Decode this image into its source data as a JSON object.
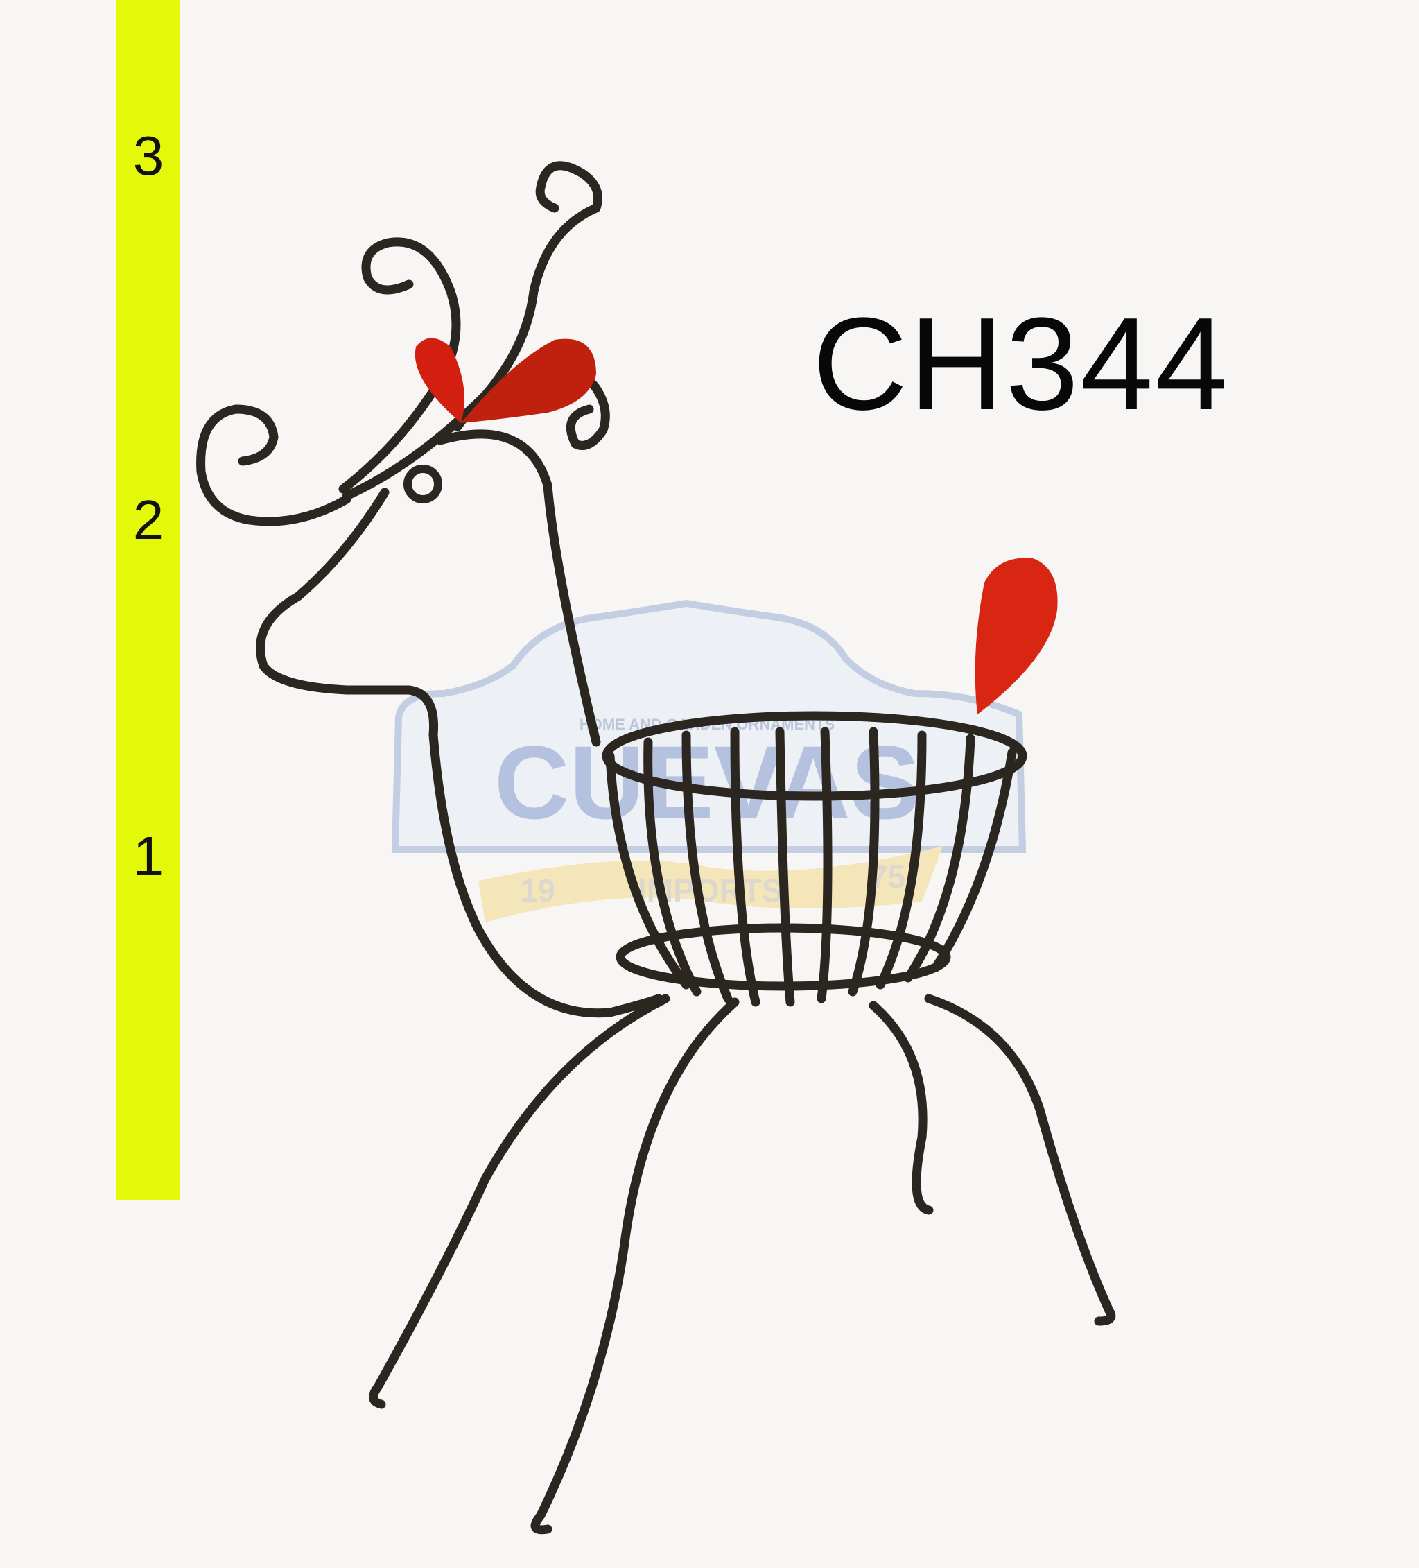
{
  "product": {
    "code": "CH344"
  },
  "scale": {
    "labels": [
      "3",
      "2",
      "1"
    ]
  },
  "watermark": {
    "tagline": "HOME AND GARDEN ORNAMENTS",
    "brand": "CUEVAS",
    "sub": "IMPORTS",
    "year_left": "19",
    "year_right": "75"
  },
  "colors": {
    "scale_bar": "#e4f80a",
    "metal": "#2b2620",
    "accent_red": "#d21f0f",
    "background": "#f7f6f4"
  }
}
